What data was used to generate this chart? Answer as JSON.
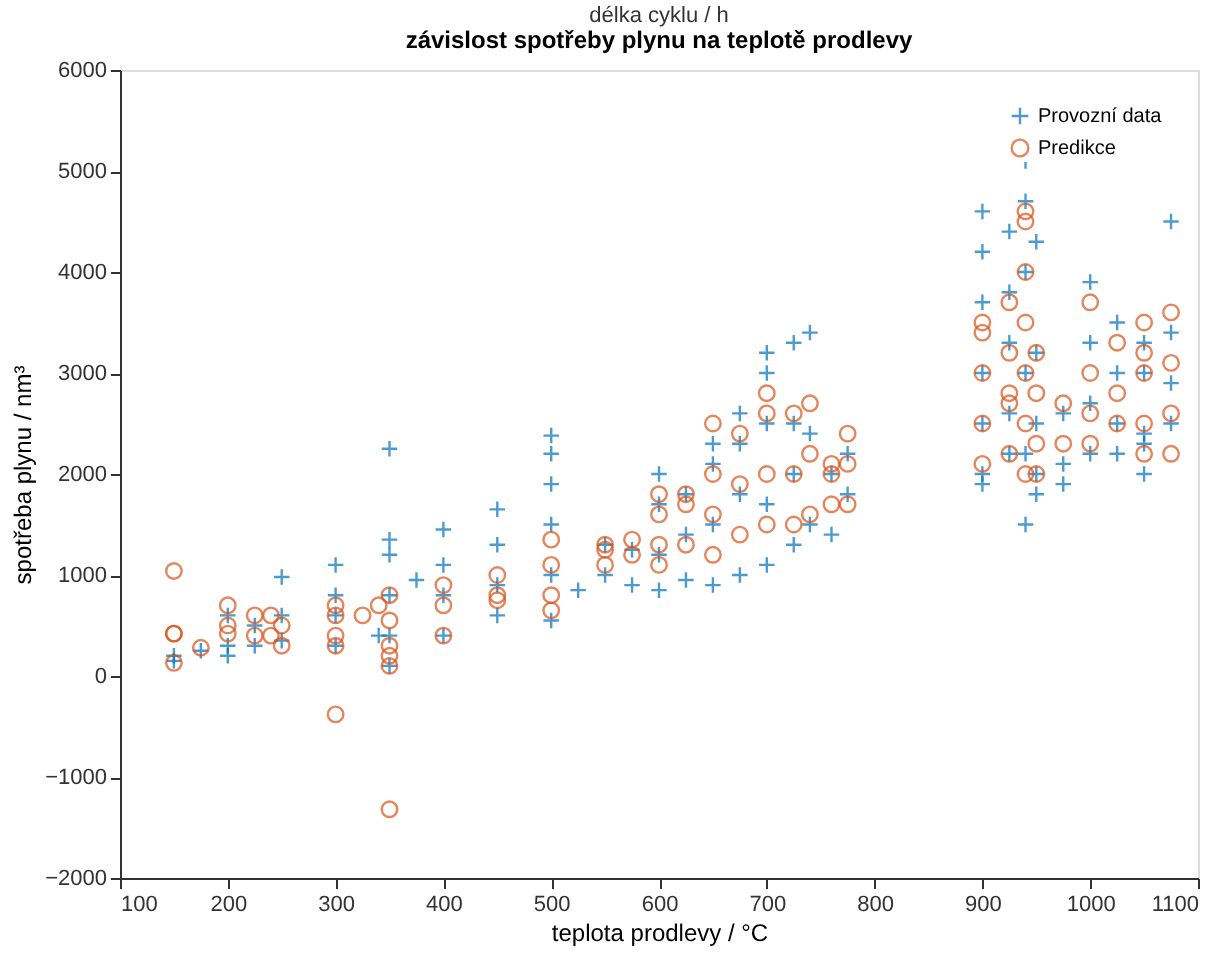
{
  "chart_data": {
    "type": "scatter",
    "title": "závislost spotřeby plynu na teplotě prodlevy",
    "xlabel": "teplota prodlevy / °C",
    "ylabel": "spotřeba plynu / nm³",
    "annotations": [
      "délka cyklu / h"
    ],
    "xlim": [
      100,
      1100
    ],
    "xticks": [
      100,
      200,
      300,
      400,
      500,
      600,
      700,
      800,
      900,
      1000,
      1100
    ],
    "ylim": [
      -2000,
      6000
    ],
    "yticks": [
      -2000,
      -1000,
      0,
      1000,
      2000,
      3000,
      4000,
      5000,
      6000
    ],
    "grid": false,
    "legend": "top right",
    "series": [
      {
        "name": "Provozní data",
        "color": "#0072bd",
        "marker": "cross",
        "x": [
          150,
          150,
          175,
          200,
          200,
          200,
          225,
          225,
          250,
          250,
          250,
          300,
          300,
          300,
          300,
          340,
          350,
          350,
          350,
          350,
          350,
          350,
          375,
          400,
          400,
          400,
          400,
          450,
          450,
          450,
          450,
          500,
          500,
          500,
          500,
          500,
          500,
          525,
          550,
          550,
          575,
          575,
          600,
          600,
          600,
          600,
          625,
          625,
          625,
          650,
          650,
          650,
          650,
          675,
          675,
          675,
          675,
          700,
          700,
          700,
          700,
          700,
          725,
          725,
          725,
          725,
          740,
          740,
          740,
          760,
          760,
          775,
          775,
          900,
          900,
          900,
          900,
          900,
          900,
          900,
          925,
          925,
          925,
          925,
          925,
          940,
          940,
          940,
          940,
          940,
          940,
          950,
          950,
          950,
          950,
          950,
          975,
          975,
          975,
          1000,
          1000,
          1000,
          1000,
          1025,
          1025,
          1025,
          1025,
          1050,
          1050,
          1050,
          1050,
          1050,
          1075,
          1075,
          1075,
          1075
        ],
        "values": [
          150,
          200,
          250,
          300,
          600,
          200,
          300,
          500,
          980,
          350,
          600,
          300,
          800,
          1100,
          600,
          400,
          100,
          1350,
          1200,
          800,
          2250,
          400,
          950,
          400,
          800,
          1100,
          1450,
          600,
          900,
          1300,
          1650,
          550,
          1000,
          1500,
          1900,
          2200,
          2380,
          850,
          1000,
          1300,
          900,
          1250,
          850,
          1200,
          1700,
          2000,
          950,
          1400,
          1800,
          900,
          1500,
          2300,
          2100,
          1000,
          1800,
          2600,
          2300,
          1100,
          1700,
          2500,
          3000,
          3200,
          1300,
          2000,
          2500,
          3300,
          1500,
          2400,
          3400,
          1400,
          2000,
          1800,
          2200,
          2000,
          2500,
          3000,
          3700,
          4200,
          4600,
          1900,
          2200,
          3300,
          4400,
          3800,
          2600,
          1500,
          2200,
          3000,
          4700,
          5100,
          4000,
          1800,
          2500,
          4300,
          3200,
          2000,
          2100,
          2600,
          1900,
          2200,
          2700,
          3300,
          3900,
          2500,
          3000,
          3500,
          2200,
          2000,
          2400,
          3000,
          3300,
          2300,
          2500,
          2900,
          3400,
          4500
        ]
      },
      {
        "name": "Predikce",
        "color": "#d95319",
        "marker": "circle",
        "x": [
          150,
          150,
          150,
          150,
          175,
          200,
          200,
          200,
          225,
          225,
          240,
          240,
          250,
          250,
          300,
          300,
          300,
          300,
          300,
          325,
          340,
          350,
          350,
          350,
          350,
          350,
          350,
          400,
          400,
          400,
          450,
          450,
          450,
          500,
          500,
          500,
          500,
          550,
          550,
          550,
          575,
          575,
          600,
          600,
          600,
          600,
          625,
          625,
          625,
          650,
          650,
          650,
          650,
          675,
          675,
          675,
          700,
          700,
          700,
          700,
          725,
          725,
          725,
          740,
          740,
          740,
          760,
          760,
          760,
          775,
          775,
          775,
          900,
          900,
          900,
          900,
          900,
          925,
          925,
          925,
          925,
          925,
          940,
          940,
          940,
          940,
          940,
          940,
          940,
          950,
          950,
          950,
          950,
          975,
          975,
          1000,
          1000,
          1000,
          1000,
          1025,
          1025,
          1025,
          1050,
          1050,
          1050,
          1050,
          1050,
          1075,
          1075,
          1075,
          1075
        ],
        "values": [
          130,
          420,
          1040,
          420,
          280,
          700,
          500,
          420,
          600,
          400,
          400,
          600,
          500,
          300,
          -380,
          400,
          700,
          300,
          600,
          600,
          700,
          -1320,
          100,
          550,
          800,
          300,
          200,
          400,
          700,
          900,
          800,
          1000,
          750,
          800,
          1100,
          1350,
          650,
          1100,
          1250,
          1300,
          1200,
          1350,
          1100,
          1300,
          1600,
          1800,
          1300,
          1700,
          1800,
          1200,
          1600,
          2000,
          2500,
          1400,
          1900,
          2400,
          1500,
          2000,
          2600,
          2800,
          1500,
          2000,
          2600,
          1600,
          2200,
          2700,
          1700,
          2100,
          2000,
          2400,
          2100,
          1700,
          2100,
          2500,
          3000,
          3500,
          3400,
          2200,
          2700,
          3200,
          3700,
          2800,
          2000,
          2500,
          3000,
          3500,
          4000,
          4500,
          4600,
          2300,
          2800,
          3200,
          2000,
          2300,
          2700,
          2300,
          2600,
          3000,
          3700,
          2500,
          2800,
          3300,
          2200,
          2500,
          3000,
          3200,
          3500,
          2200,
          2600,
          3100,
          3600
        ]
      }
    ]
  }
}
